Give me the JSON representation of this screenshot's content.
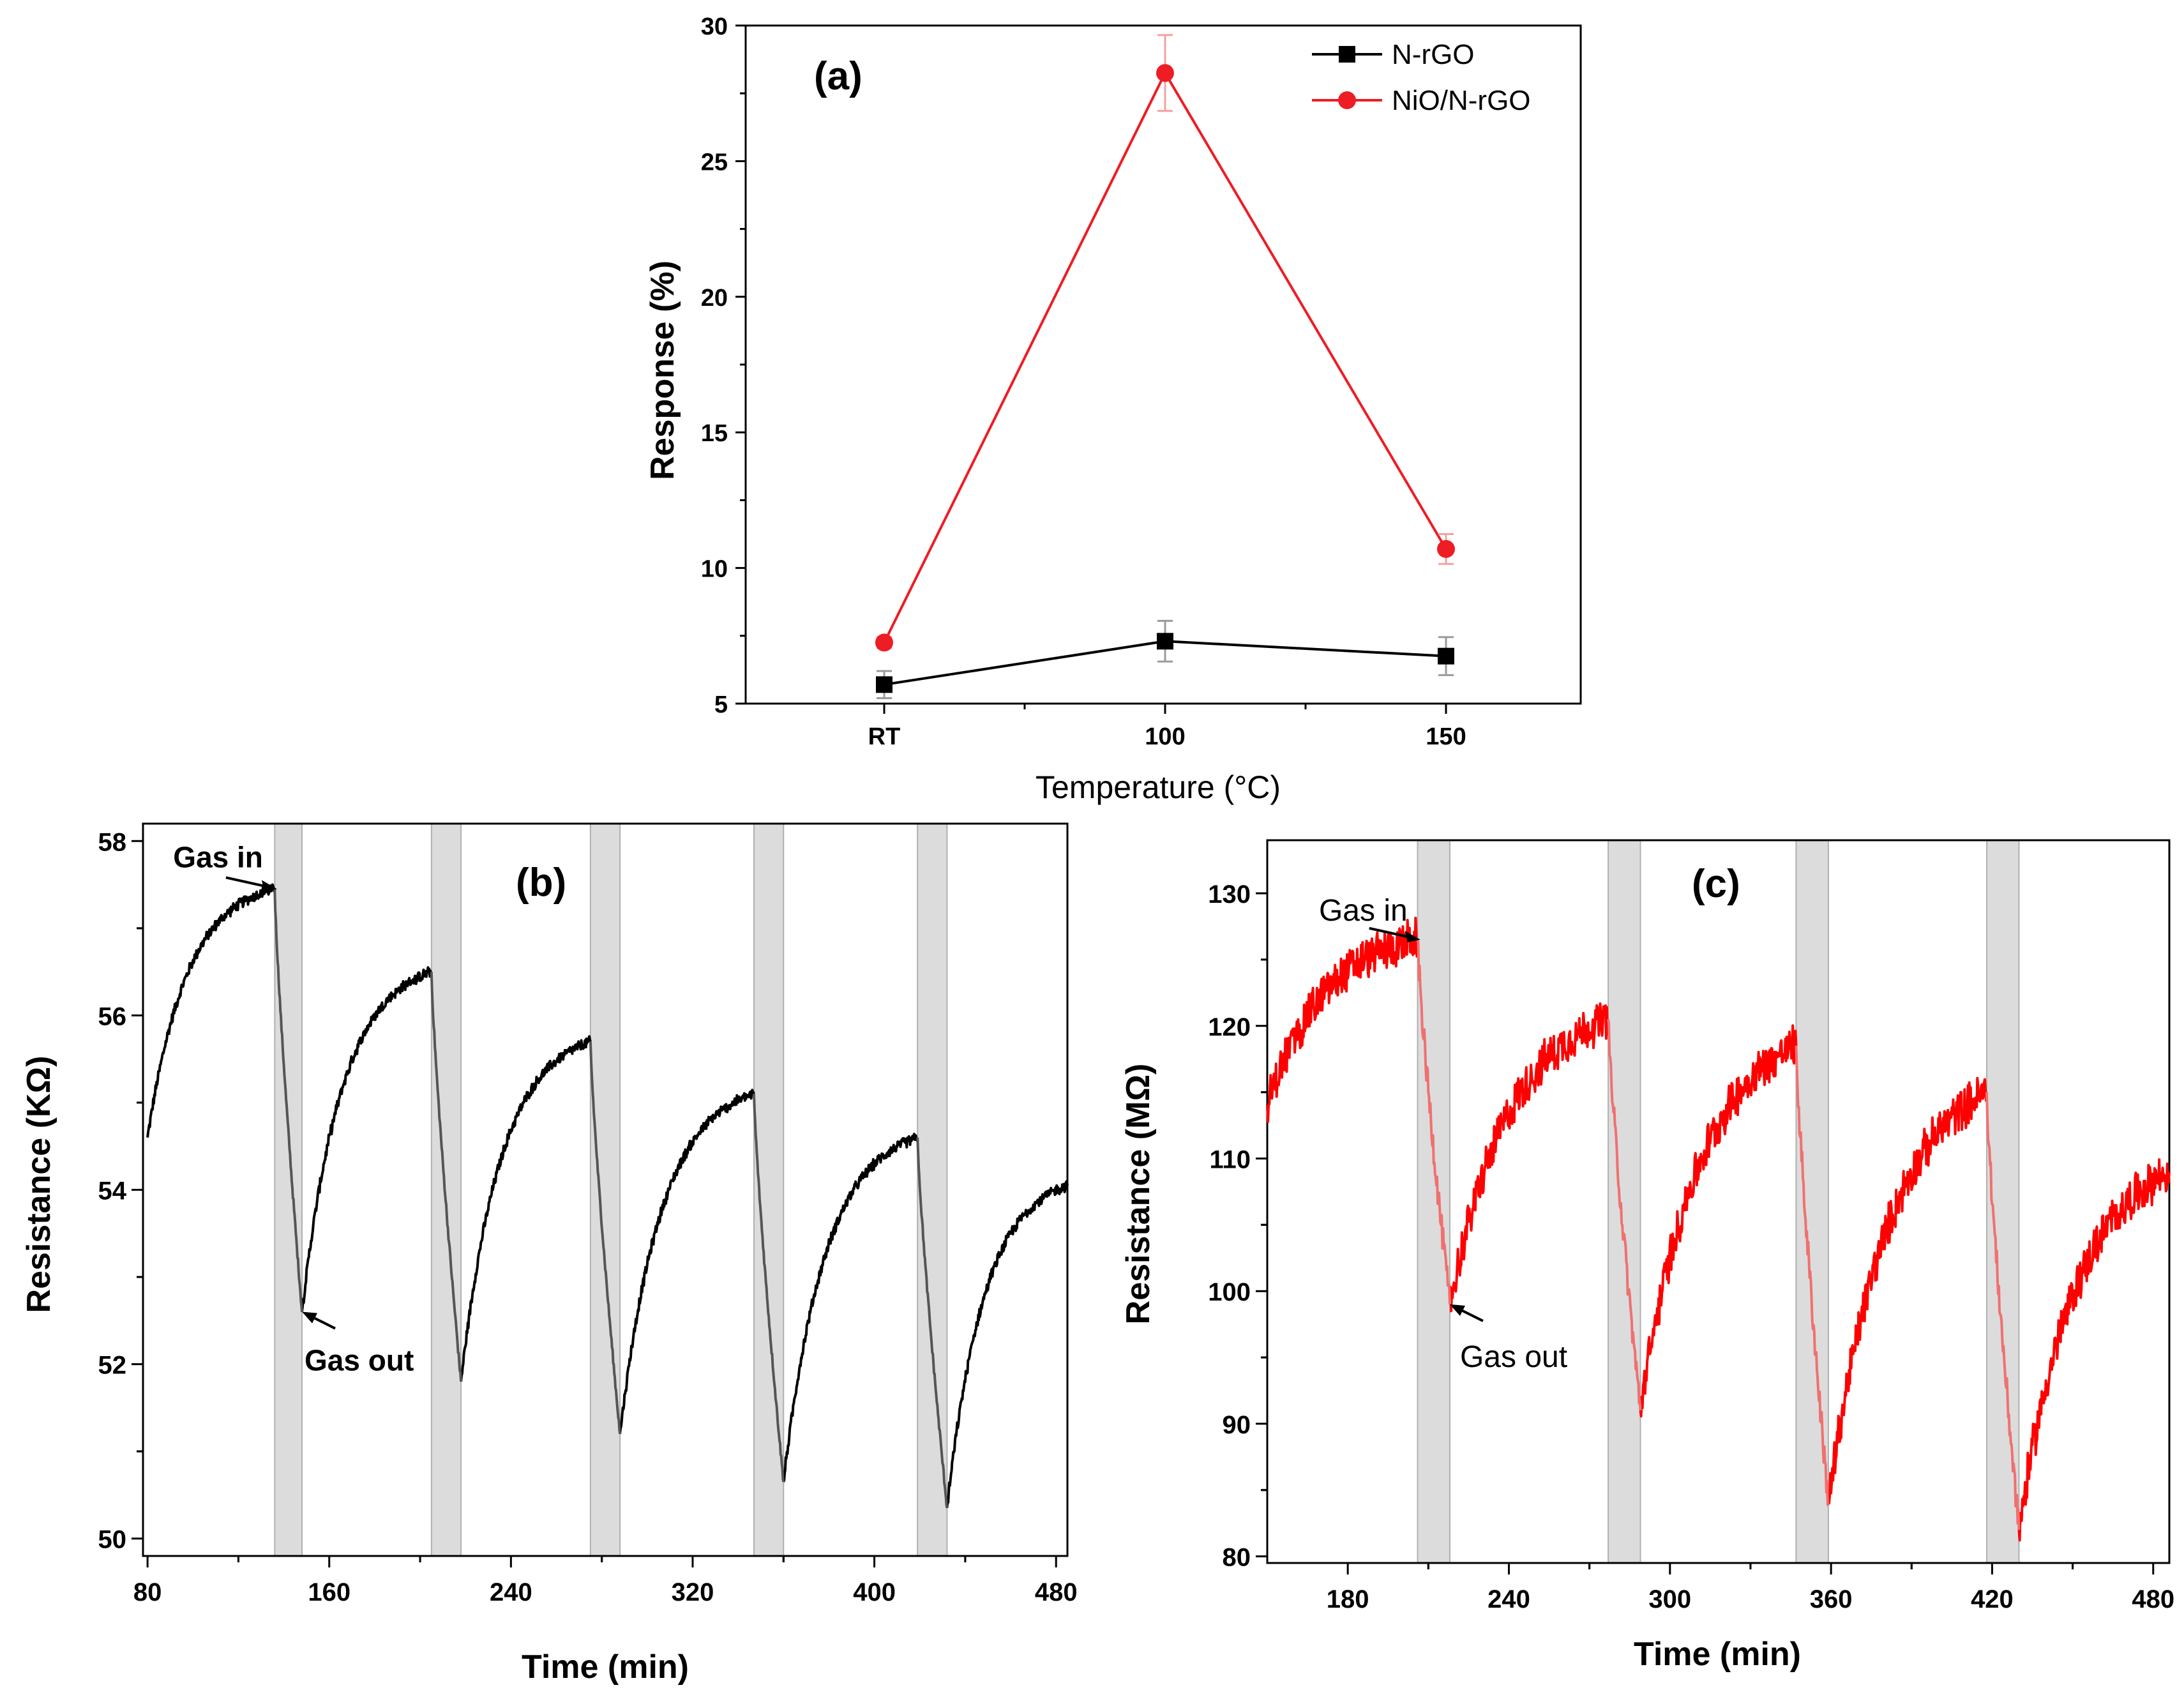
{
  "chart_data": [
    {
      "type": "line",
      "panel_label": "(a)",
      "xlabel": "Temperature (°C)",
      "ylabel": "Response (%)",
      "categories": [
        "RT",
        "100",
        "150"
      ],
      "ylim": [
        5,
        30
      ],
      "yticks": [
        5,
        10,
        15,
        20,
        25,
        30
      ],
      "legend_position": "top-right",
      "series": [
        {
          "name": "N-rGO",
          "color": "#000000",
          "marker": "square",
          "values": [
            5.7,
            7.3,
            6.75
          ],
          "errors": [
            0.5,
            0.75,
            0.7
          ]
        },
        {
          "name": "NiO/N-rGO",
          "color": "#ee1c24",
          "marker": "circle",
          "values": [
            7.25,
            28.25,
            10.7
          ],
          "errors": [
            0.2,
            1.4,
            0.55
          ]
        }
      ]
    },
    {
      "type": "line",
      "panel_label": "(b)",
      "xlabel": "Time (min)",
      "ylabel": "Resistance (KΩ)",
      "xlim": [
        78,
        485
      ],
      "ylim": [
        49.8,
        58.2
      ],
      "xticks": [
        80,
        160,
        240,
        320,
        400,
        480
      ],
      "yticks": [
        50,
        52,
        54,
        56,
        58
      ],
      "color": "#000000",
      "gas_in_color": "#555555",
      "gas_windows": [
        [
          136,
          148
        ],
        [
          205,
          218
        ],
        [
          275,
          288
        ],
        [
          347,
          360
        ],
        [
          419,
          432
        ]
      ],
      "cycles": [
        {
          "start": 80,
          "start_value": 54.6,
          "peak": 57.45
        },
        {
          "start": 148,
          "start_value": 52.6,
          "peak": 56.5
        },
        {
          "start": 218,
          "start_value": 51.8,
          "peak": 55.7
        },
        {
          "start": 288,
          "start_value": 51.2,
          "peak": 55.1
        },
        {
          "start": 360,
          "start_value": 50.65,
          "peak": 54.6
        },
        {
          "start": 432,
          "start_value": 50.35,
          "end_value": 54.05,
          "end": 485
        }
      ],
      "annotations": [
        {
          "text": "Gas in",
          "x": 137,
          "y": 57.45
        },
        {
          "text": "Gas out",
          "x": 148,
          "y": 52.6
        }
      ]
    },
    {
      "type": "line",
      "panel_label": "(c)",
      "xlabel": "Time (min)",
      "ylabel": "Resistance (MΩ)",
      "xlim": [
        150,
        486
      ],
      "ylim": [
        79.5,
        134
      ],
      "xticks": [
        180,
        240,
        300,
        360,
        420,
        480
      ],
      "yticks": [
        80,
        90,
        100,
        110,
        120,
        130
      ],
      "color": "#ff0000",
      "gas_in_color": "#f07070",
      "gas_windows": [
        [
          206,
          218
        ],
        [
          277,
          289
        ],
        [
          347,
          359
        ],
        [
          418,
          430
        ]
      ],
      "cycles": [
        {
          "start": 150,
          "start_value": 114,
          "peak": 126.5
        },
        {
          "start": 218,
          "start_value": 99,
          "peak": 120.5
        },
        {
          "start": 289,
          "start_value": 91,
          "peak": 118.5
        },
        {
          "start": 359,
          "start_value": 84,
          "peak": 115
        },
        {
          "start": 430,
          "start_value": 82,
          "end_value": 109,
          "end": 486
        }
      ],
      "annotations": [
        {
          "text": "Gas in",
          "x": 207,
          "y": 126.5
        },
        {
          "text": "Gas out",
          "x": 218,
          "y": 99
        }
      ]
    }
  ]
}
